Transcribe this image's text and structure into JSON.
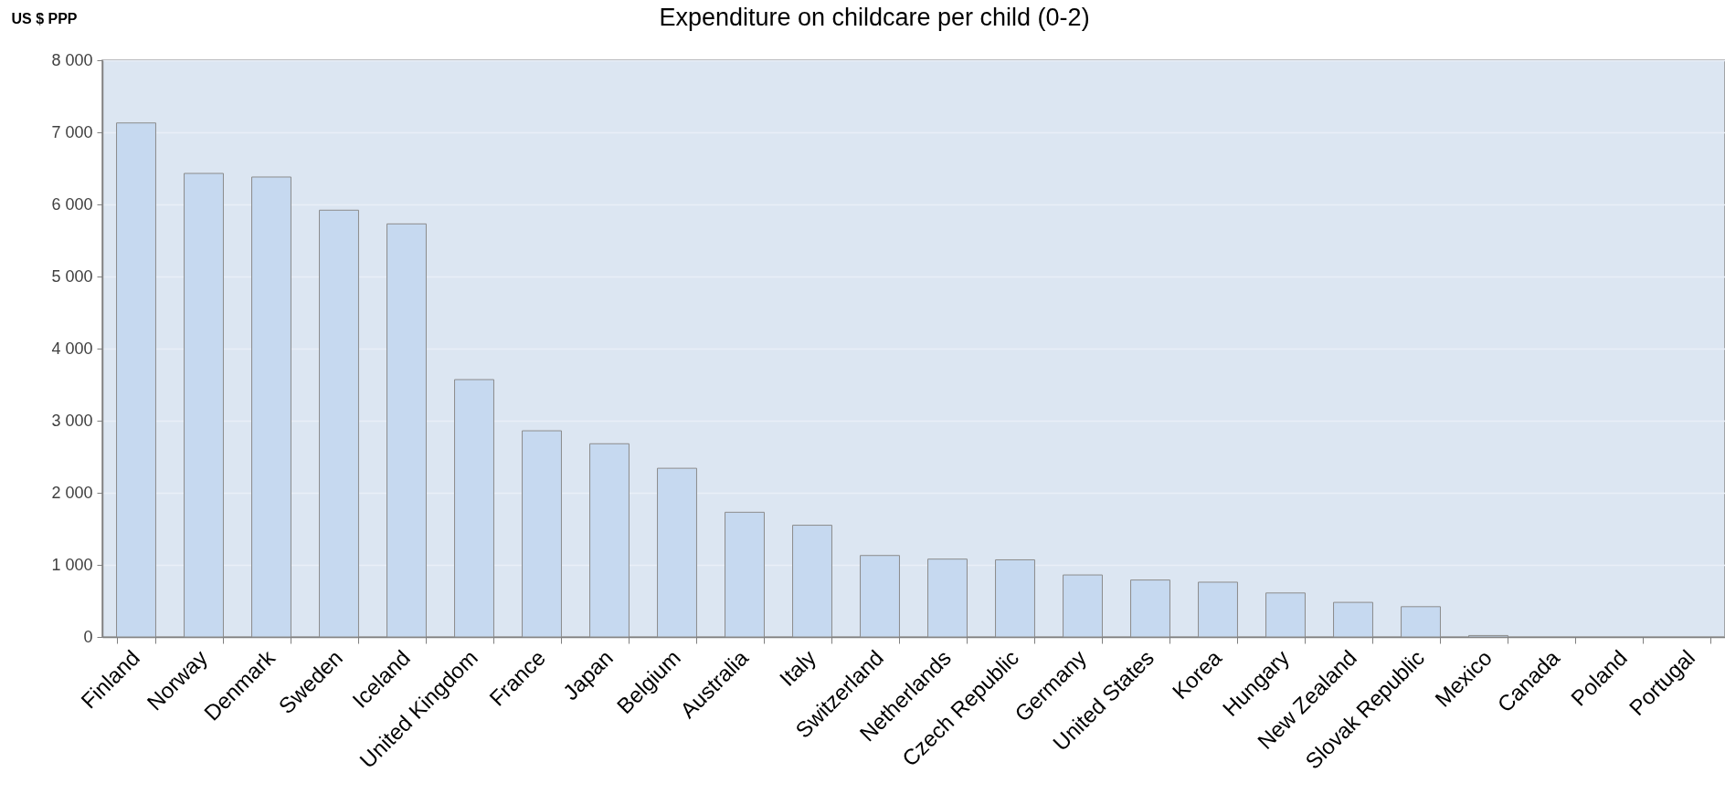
{
  "chart_data": {
    "type": "bar",
    "title": "Expenditure on childcare per child (0-2)",
    "ylabel": "US $ PPP",
    "categories": [
      "Finland",
      "Norway",
      "Denmark",
      "Sweden",
      "Iceland",
      "United Kingdom",
      "France",
      "Japan",
      "Belgium",
      "Australia",
      "Italy",
      "Switzerland",
      "Netherlands",
      "Czech Republic",
      "Germany",
      "United States",
      "Korea",
      "Hungary",
      "New Zealand",
      "Slovak Republic",
      "Mexico",
      "Canada",
      "Poland",
      "Portugal"
    ],
    "values": [
      7130,
      6430,
      6380,
      5920,
      5730,
      3570,
      2860,
      2680,
      2340,
      1730,
      1550,
      1130,
      1080,
      1070,
      860,
      790,
      760,
      610,
      480,
      420,
      20,
      null,
      null,
      null
    ],
    "color": "#c6d9f0",
    "ylim": [
      0,
      8000
    ],
    "yticks": [
      0,
      {
        "value": 1000,
        "label": "1 000"
      },
      {
        "value": 2000,
        "label": "2 000"
      },
      {
        "value": 3000,
        "label": "3 000"
      },
      {
        "value": 4000,
        "label": "4 000"
      },
      {
        "value": 5000,
        "label": "5 000"
      },
      {
        "value": 6000,
        "label": "6 000"
      },
      {
        "value": 7000,
        "label": "7 000"
      },
      {
        "value": 8000,
        "label": "8 000"
      }
    ],
    "grid": "y"
  }
}
